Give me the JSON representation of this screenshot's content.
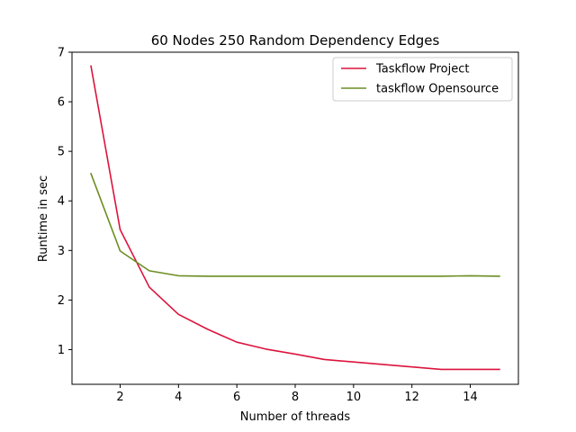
{
  "chart_data": {
    "type": "line",
    "title": "60 Nodes 250 Random Dependency Edges",
    "xlabel": "Number of threads",
    "ylabel": "Runtime in sec",
    "xlim": [
      0.35,
      15.65
    ],
    "ylim": [
      0.3,
      7.0
    ],
    "xticks": [
      2,
      4,
      6,
      8,
      10,
      12,
      14
    ],
    "yticks": [
      1,
      2,
      3,
      4,
      5,
      6,
      7
    ],
    "grid": false,
    "legend_position": "top-right",
    "series": [
      {
        "name": "Taskflow Project",
        "color": "#dc143c",
        "x": [
          1,
          2,
          3,
          4,
          5,
          6,
          7,
          8,
          9,
          10,
          11,
          12,
          13,
          14,
          15
        ],
        "y": [
          6.72,
          3.42,
          2.26,
          1.71,
          1.41,
          1.15,
          1.01,
          0.91,
          0.8,
          0.75,
          0.7,
          0.65,
          0.6,
          0.6,
          0.6
        ]
      },
      {
        "name": "taskflow Opensource",
        "color": "#6b8e23",
        "x": [
          1,
          2,
          3,
          4,
          5,
          6,
          7,
          8,
          9,
          10,
          11,
          12,
          13,
          14,
          15
        ],
        "y": [
          4.55,
          2.99,
          2.59,
          2.49,
          2.48,
          2.48,
          2.48,
          2.48,
          2.48,
          2.48,
          2.48,
          2.48,
          2.48,
          2.49,
          2.48
        ]
      }
    ]
  }
}
